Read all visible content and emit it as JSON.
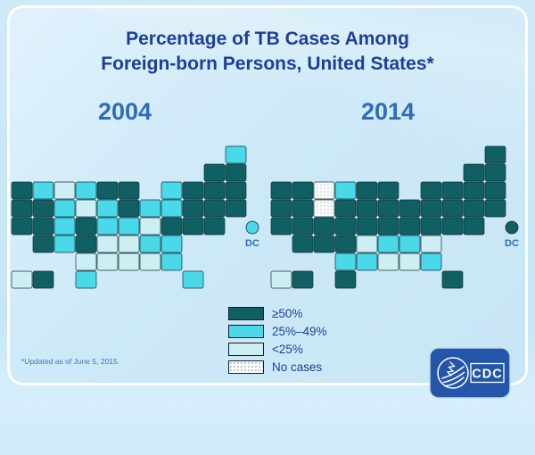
{
  "slide": {
    "title_line1": "Percentage of TB Cases Among",
    "title_line2": "Foreign-born Persons, United States*",
    "footnote": "*Updated as of June 5, 2015.",
    "logo_text": "CDC"
  },
  "chart_data": {
    "type": "heatmap",
    "subtype": "us-choropleth-cartogram",
    "title": "Percentage of TB Cases Among Foreign-born Persons, United States*",
    "years": [
      "2004",
      "2014"
    ],
    "dc_label": "DC",
    "legend": [
      {
        "key": "gte50",
        "label": "≥50%",
        "color": "#0F5F63"
      },
      {
        "key": "25to49",
        "label": "25%–49%",
        "color": "#49D9E9"
      },
      {
        "key": "lt25",
        "label": "<25%",
        "color": "#CDEFF4"
      },
      {
        "key": "none",
        "label": "No cases",
        "color": "#FDFDFE",
        "pattern": "dots"
      }
    ],
    "states": [
      {
        "abbr": "WA",
        "y2004": "gte50",
        "y2014": "gte50"
      },
      {
        "abbr": "OR",
        "y2004": "gte50",
        "y2014": "gte50"
      },
      {
        "abbr": "CA",
        "y2004": "gte50",
        "y2014": "gte50"
      },
      {
        "abbr": "NV",
        "y2004": "gte50",
        "y2014": "gte50"
      },
      {
        "abbr": "ID",
        "y2004": "25to49",
        "y2014": "gte50"
      },
      {
        "abbr": "UT",
        "y2004": "gte50",
        "y2014": "gte50"
      },
      {
        "abbr": "AZ",
        "y2004": "gte50",
        "y2014": "gte50"
      },
      {
        "abbr": "MT",
        "y2004": "lt25",
        "y2014": "none"
      },
      {
        "abbr": "WY",
        "y2004": "25to49",
        "y2014": "none"
      },
      {
        "abbr": "CO",
        "y2004": "25to49",
        "y2014": "gte50"
      },
      {
        "abbr": "NM",
        "y2004": "25to49",
        "y2014": "gte50"
      },
      {
        "abbr": "ND",
        "y2004": "25to49",
        "y2014": "25to49"
      },
      {
        "abbr": "SD",
        "y2004": "lt25",
        "y2014": "gte50"
      },
      {
        "abbr": "NE",
        "y2004": "gte50",
        "y2014": "gte50"
      },
      {
        "abbr": "KS",
        "y2004": "gte50",
        "y2014": "gte50"
      },
      {
        "abbr": "OK",
        "y2004": "lt25",
        "y2014": "25to49"
      },
      {
        "abbr": "TX",
        "y2004": "25to49",
        "y2014": "gte50"
      },
      {
        "abbr": "MN",
        "y2004": "gte50",
        "y2014": "gte50"
      },
      {
        "abbr": "IA",
        "y2004": "25to49",
        "y2014": "gte50"
      },
      {
        "abbr": "MO",
        "y2004": "25to49",
        "y2014": "gte50"
      },
      {
        "abbr": "AR",
        "y2004": "lt25",
        "y2014": "lt25"
      },
      {
        "abbr": "LA",
        "y2004": "lt25",
        "y2014": "25to49"
      },
      {
        "abbr": "WI",
        "y2004": "gte50",
        "y2014": "gte50"
      },
      {
        "abbr": "IL",
        "y2004": "gte50",
        "y2014": "gte50"
      },
      {
        "abbr": "MI",
        "y2004": "25to49",
        "y2014": "gte50"
      },
      {
        "abbr": "IN",
        "y2004": "25to49",
        "y2014": "gte50"
      },
      {
        "abbr": "OH",
        "y2004": "25to49",
        "y2014": "gte50"
      },
      {
        "abbr": "KY",
        "y2004": "25to49",
        "y2014": "gte50"
      },
      {
        "abbr": "TN",
        "y2004": "lt25",
        "y2014": "25to49"
      },
      {
        "abbr": "MS",
        "y2004": "lt25",
        "y2014": "lt25"
      },
      {
        "abbr": "AL",
        "y2004": "lt25",
        "y2014": "lt25"
      },
      {
        "abbr": "GA",
        "y2004": "25to49",
        "y2014": "25to49"
      },
      {
        "abbr": "FL",
        "y2004": "25to49",
        "y2014": "gte50"
      },
      {
        "abbr": "SC",
        "y2004": "25to49",
        "y2014": "lt25"
      },
      {
        "abbr": "NC",
        "y2004": "25to49",
        "y2014": "25to49"
      },
      {
        "abbr": "VA",
        "y2004": "gte50",
        "y2014": "gte50"
      },
      {
        "abbr": "WV",
        "y2004": "lt25",
        "y2014": "gte50"
      },
      {
        "abbr": "MD",
        "y2004": "gte50",
        "y2014": "gte50"
      },
      {
        "abbr": "DE",
        "y2004": "gte50",
        "y2014": "gte50"
      },
      {
        "abbr": "NJ",
        "y2004": "gte50",
        "y2014": "gte50"
      },
      {
        "abbr": "PA",
        "y2004": "gte50",
        "y2014": "gte50"
      },
      {
        "abbr": "NY",
        "y2004": "gte50",
        "y2014": "gte50"
      },
      {
        "abbr": "CT",
        "y2004": "gte50",
        "y2014": "gte50"
      },
      {
        "abbr": "RI",
        "y2004": "gte50",
        "y2014": "gte50"
      },
      {
        "abbr": "MA",
        "y2004": "gte50",
        "y2014": "gte50"
      },
      {
        "abbr": "VT",
        "y2004": "gte50",
        "y2014": "gte50"
      },
      {
        "abbr": "NH",
        "y2004": "gte50",
        "y2014": "gte50"
      },
      {
        "abbr": "ME",
        "y2004": "25to49",
        "y2014": "gte50"
      },
      {
        "abbr": "AK",
        "y2004": "lt25",
        "y2014": "lt25"
      },
      {
        "abbr": "HI",
        "y2004": "gte50",
        "y2014": "gte50"
      },
      {
        "abbr": "DC",
        "y2004": "25to49",
        "y2014": "gte50"
      }
    ]
  }
}
